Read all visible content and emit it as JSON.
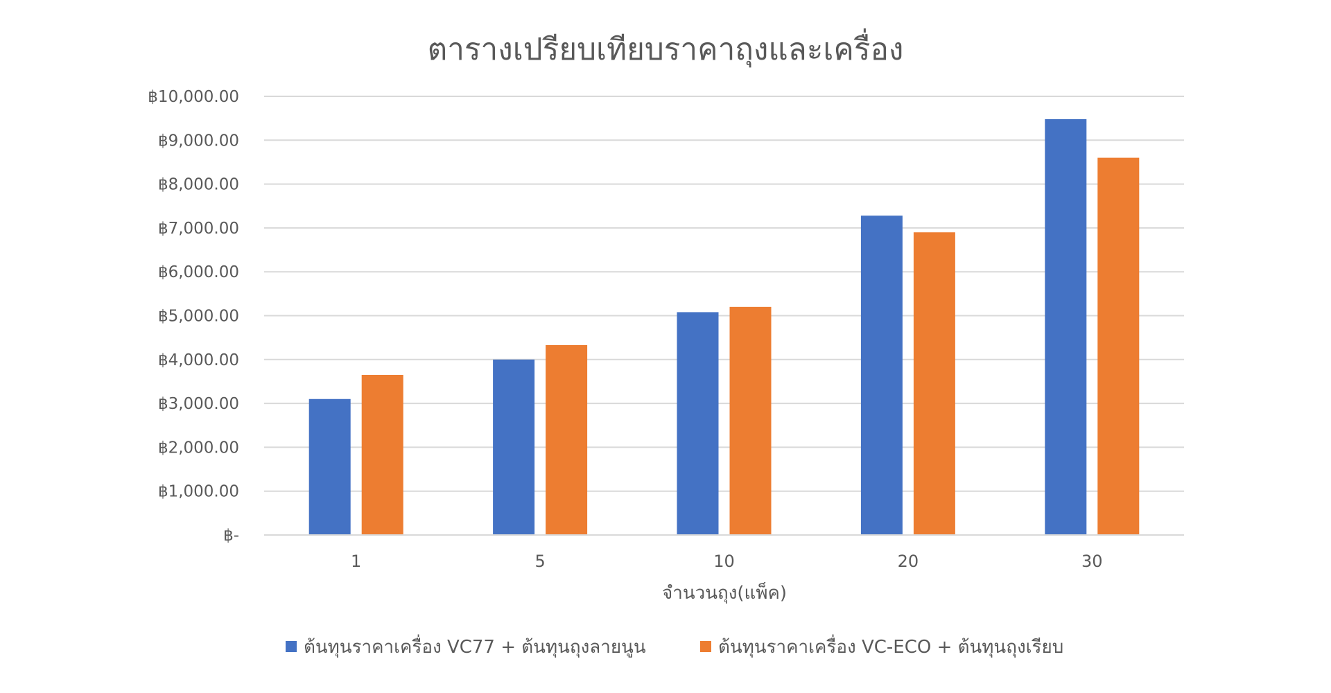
{
  "chart_data": {
    "type": "bar",
    "title": "ตารางเปรียบเทียบราคาถุงและเครื่อง",
    "xlabel": "จำนวนถุง(แพ็ค)",
    "ylabel": "",
    "categories": [
      "1",
      "5",
      "10",
      "20",
      "30"
    ],
    "series": [
      {
        "name": "ต้นทุนราคาเครื่อง VC77 + ต้นทุนถุงลายนูน",
        "color": "#4472C4",
        "values": [
          3100,
          4000,
          5080,
          7280,
          9480
        ]
      },
      {
        "name": "ต้นทุนราคาเครื่อง VC-ECO + ต้นทุนถุงเรียบ",
        "color": "#ED7D31",
        "values": [
          3650,
          4330,
          5200,
          6900,
          8600
        ]
      }
    ],
    "ylim": [
      0,
      10000
    ],
    "yticks": [
      0,
      1000,
      2000,
      3000,
      4000,
      5000,
      6000,
      7000,
      8000,
      9000,
      10000
    ],
    "ytick_labels": [
      "฿-",
      "฿1,000.00",
      "฿2,000.00",
      "฿3,000.00",
      "฿4,000.00",
      "฿5,000.00",
      "฿6,000.00",
      "฿7,000.00",
      "฿8,000.00",
      "฿9,000.00",
      "฿10,000.00"
    ],
    "grid": true,
    "legend_position": "bottom"
  }
}
